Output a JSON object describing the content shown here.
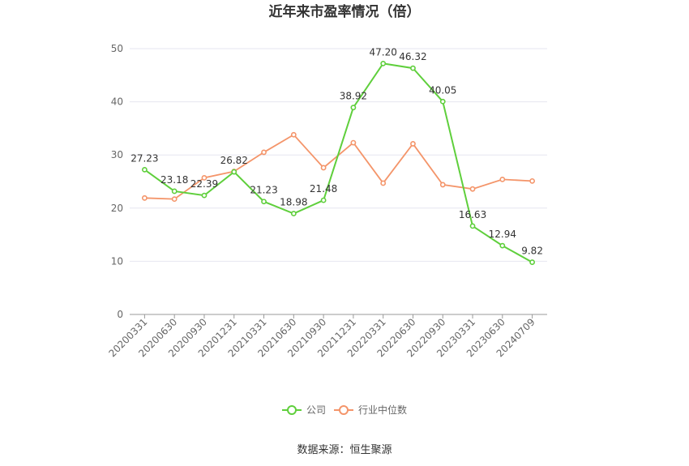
{
  "colors": {
    "company": "#5fcf3c",
    "industry": "#f4956a",
    "grid": "#e6e6f0",
    "axis": "#999999"
  },
  "chart_data": {
    "type": "line",
    "title": "近年来市盈率情况（倍）",
    "categories": [
      "20200331",
      "20200630",
      "20200930",
      "20201231",
      "20210331",
      "20210630",
      "20210930",
      "20211231",
      "20220331",
      "20220630",
      "20220930",
      "20230331",
      "20230630",
      "20240709"
    ],
    "ylim": [
      0,
      50
    ],
    "yticks": [
      0,
      10,
      20,
      30,
      40,
      50
    ],
    "grid": true,
    "legend_position": "bottom",
    "series": [
      {
        "name": "公司",
        "values": [
          27.23,
          23.18,
          22.39,
          26.82,
          21.23,
          18.98,
          21.48,
          38.92,
          47.2,
          46.32,
          40.05,
          16.63,
          12.94,
          9.82
        ],
        "labels": [
          "27.23",
          "23.18",
          "22.39",
          "26.82",
          "21.23",
          "18.98",
          "21.48",
          "38.92",
          "47.20",
          "46.32",
          "40.05",
          "16.63",
          "12.94",
          "9.82"
        ]
      },
      {
        "name": "行业中位数",
        "values": [
          21.9,
          21.7,
          25.7,
          26.9,
          30.5,
          33.8,
          27.6,
          32.3,
          24.7,
          32.1,
          24.4,
          23.6,
          25.4,
          25.1
        ]
      }
    ],
    "source": "数据来源：恒生聚源"
  }
}
